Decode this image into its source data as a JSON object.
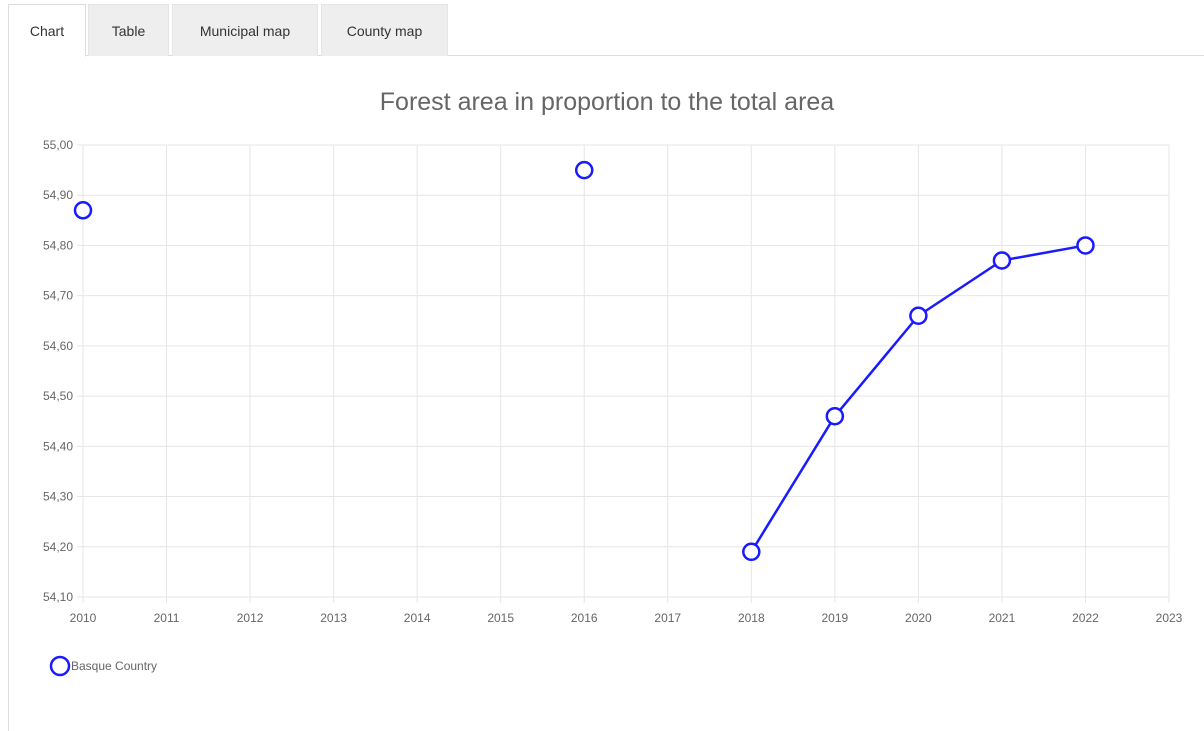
{
  "tabs": [
    {
      "label": "Chart",
      "active": true
    },
    {
      "label": "Table",
      "active": false
    },
    {
      "label": "Municipal map",
      "active": false
    },
    {
      "label": "County map",
      "active": false
    }
  ],
  "colors": {
    "series": "#1a1aff",
    "grid": "#e6e6e6",
    "axis_text": "#666666",
    "title": "#666666"
  },
  "chart_data": {
    "type": "line",
    "title": "Forest area in proportion to the total area",
    "xlabel": "",
    "ylabel": "",
    "x_ticks": [
      "2010",
      "2011",
      "2012",
      "2013",
      "2014",
      "2015",
      "2016",
      "2017",
      "2018",
      "2019",
      "2020",
      "2021",
      "2022",
      "2023"
    ],
    "y_ticks": [
      "55,00",
      "54,90",
      "54,80",
      "54,70",
      "54,60",
      "54,50",
      "54,40",
      "54,30",
      "54,20",
      "54,10"
    ],
    "xlim": [
      2010,
      2023
    ],
    "ylim": [
      54.1,
      55.0
    ],
    "grid": true,
    "legend_position": "bottom-left",
    "series": [
      {
        "name": "Basque Country",
        "points": [
          {
            "x": 2010,
            "y": 54.87
          },
          {
            "x": 2011,
            "y": null
          },
          {
            "x": 2012,
            "y": null
          },
          {
            "x": 2013,
            "y": null
          },
          {
            "x": 2014,
            "y": null
          },
          {
            "x": 2015,
            "y": null
          },
          {
            "x": 2016,
            "y": 54.95
          },
          {
            "x": 2017,
            "y": null
          },
          {
            "x": 2018,
            "y": 54.19
          },
          {
            "x": 2019,
            "y": 54.46
          },
          {
            "x": 2020,
            "y": 54.66
          },
          {
            "x": 2021,
            "y": 54.77
          },
          {
            "x": 2022,
            "y": 54.8
          }
        ]
      }
    ]
  }
}
